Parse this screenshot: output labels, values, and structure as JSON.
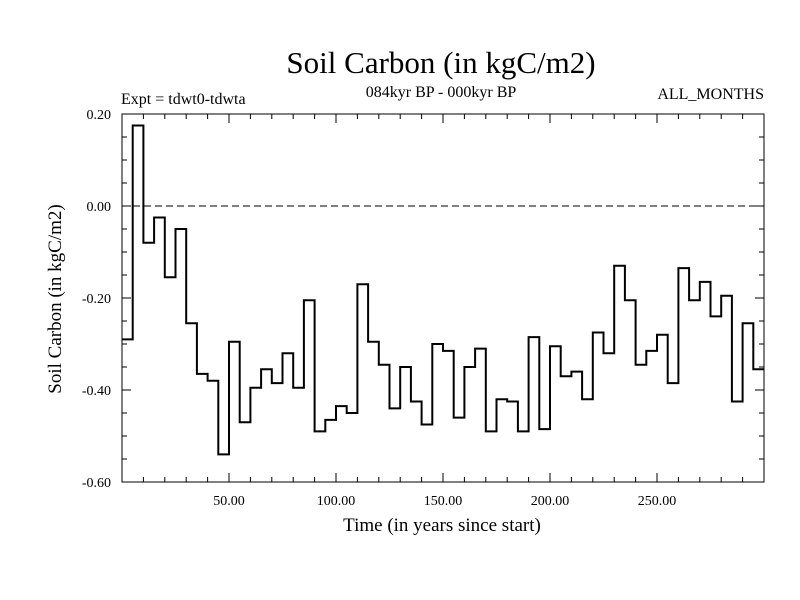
{
  "chart_data": {
    "type": "line",
    "style": "step",
    "title": "Soil Carbon (in kgC/m2)",
    "subtitle_left": "Expt = tdwt0-tdwta",
    "subtitle_center": "084kyr BP - 000kyr BP",
    "subtitle_right": "ALL_MONTHS",
    "xlabel": "Time (in years since start)",
    "ylabel": "Soil Carbon (in kgC/m2)",
    "xlim": [
      0,
      300
    ],
    "ylim": [
      -0.6,
      0.2
    ],
    "xticks": [
      50,
      100,
      150,
      200,
      250
    ],
    "xtick_labels": [
      "50.00",
      "100.00",
      "150.00",
      "200.00",
      "250.00"
    ],
    "yticks": [
      0.2,
      0.0,
      -0.2,
      -0.4,
      -0.6
    ],
    "ytick_labels": [
      "0.20",
      "0.00",
      "-0.20",
      "-0.40",
      "-0.60"
    ],
    "reference_line": 0.0,
    "step_width": 5,
    "x": [
      0,
      5,
      10,
      15,
      20,
      25,
      30,
      35,
      40,
      45,
      50,
      55,
      60,
      65,
      70,
      75,
      80,
      85,
      90,
      95,
      100,
      105,
      110,
      115,
      120,
      125,
      130,
      135,
      140,
      145,
      150,
      155,
      160,
      165,
      170,
      175,
      180,
      185,
      190,
      195,
      200,
      205,
      210,
      215,
      220,
      225,
      230,
      235,
      240,
      245,
      250,
      255,
      260,
      265,
      270,
      275,
      280,
      285,
      290,
      295
    ],
    "values": [
      -0.29,
      0.175,
      -0.08,
      -0.025,
      -0.155,
      -0.05,
      -0.255,
      -0.365,
      -0.38,
      -0.54,
      -0.295,
      -0.47,
      -0.395,
      -0.355,
      -0.385,
      -0.32,
      -0.395,
      -0.205,
      -0.49,
      -0.465,
      -0.435,
      -0.45,
      -0.17,
      -0.295,
      -0.345,
      -0.44,
      -0.35,
      -0.425,
      -0.475,
      -0.3,
      -0.315,
      -0.46,
      -0.35,
      -0.31,
      -0.49,
      -0.42,
      -0.425,
      -0.49,
      -0.285,
      -0.485,
      -0.305,
      -0.37,
      -0.36,
      -0.42,
      -0.275,
      -0.32,
      -0.13,
      -0.205,
      -0.345,
      -0.315,
      -0.28,
      -0.385,
      -0.135,
      -0.205,
      -0.165,
      -0.24,
      -0.195,
      -0.425,
      -0.255,
      -0.355
    ]
  }
}
